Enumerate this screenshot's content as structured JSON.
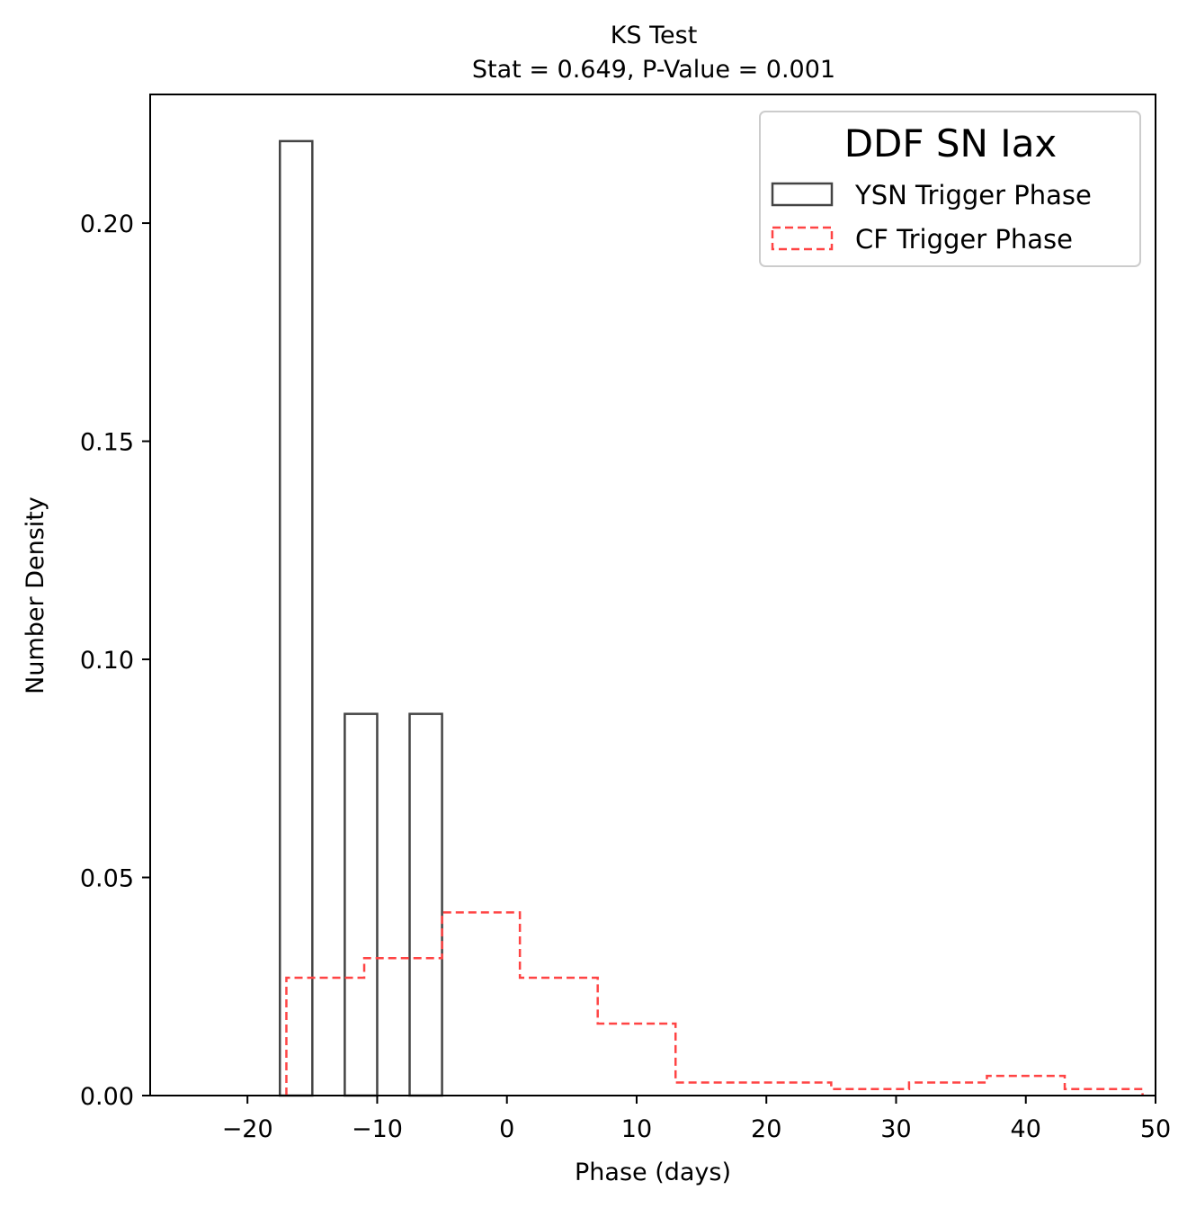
{
  "chart_data": {
    "type": "histogram",
    "title": "KS Test",
    "subtitle": "Stat = 0.649, P-Value = 0.001",
    "xlabel": "Phase (days)",
    "ylabel": "Number Density",
    "xlim": [
      -27.5,
      50
    ],
    "ylim": [
      0,
      0.2295
    ],
    "xticks": [
      -20,
      -10,
      0,
      10,
      20,
      30,
      40,
      50
    ],
    "xtick_labels": [
      "−20",
      "−10",
      "0",
      "10",
      "20",
      "30",
      "40",
      "50"
    ],
    "yticks": [
      0,
      0.05,
      0.1,
      0.15,
      0.2
    ],
    "ytick_labels": [
      "0.00",
      "0.05",
      "0.10",
      "0.15",
      "0.20"
    ],
    "legend": {
      "title": "DDF SN Iax",
      "position": "upper right",
      "entries": [
        "YSN Trigger Phase",
        "CF Trigger Phase"
      ]
    },
    "series": [
      {
        "name": "YSN Trigger Phase",
        "style": "solid-bars",
        "color": "#444444",
        "bins": [
          {
            "x0": -17.5,
            "x1": -15.0,
            "value": 0.2188
          },
          {
            "x0": -12.5,
            "x1": -10.0,
            "value": 0.0875
          },
          {
            "x0": -7.5,
            "x1": -5.0,
            "value": 0.0875
          }
        ]
      },
      {
        "name": "CF Trigger Phase",
        "style": "dashed-step",
        "color": "#ff4444",
        "edges": [
          -17.0,
          -11.0,
          -5.0,
          1.0,
          7.0,
          13.0,
          19.0,
          25.0,
          31.0,
          37.0,
          43.0,
          49.0
        ],
        "values": [
          0.027,
          0.0315,
          0.042,
          0.027,
          0.0165,
          0.003,
          0.003,
          0.0015,
          0.003,
          0.0045,
          0.0015
        ]
      }
    ]
  }
}
